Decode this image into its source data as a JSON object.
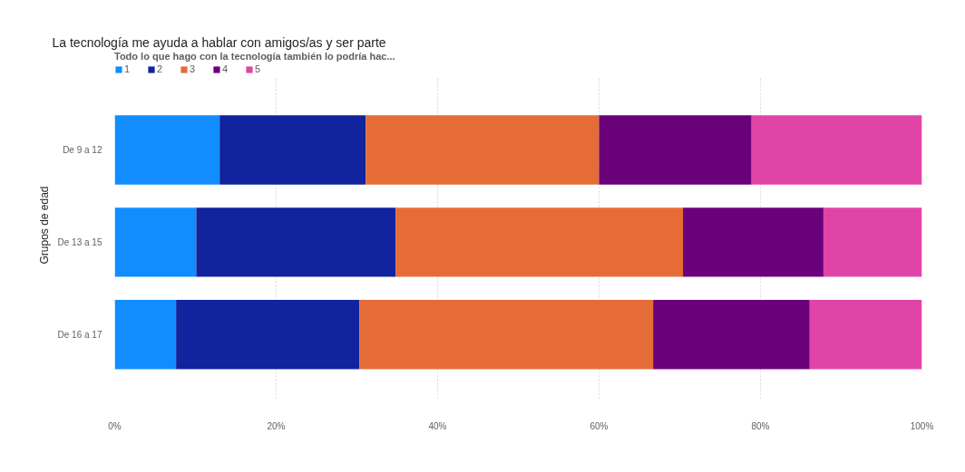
{
  "chart_data": {
    "type": "bar",
    "title": "La tecnología me ayuda a hablar con amigos/as y ser parte",
    "legend_title": "Todo lo que hago con la tecnología también lo podría hac...",
    "ylabel": "Grupos de edad",
    "categories": [
      "De 9 a 12",
      "De 13 a 15",
      "De 16 a 17"
    ],
    "orientation": "horizontal",
    "stacked": true,
    "series": [
      {
        "name": "1",
        "color": "#118dff",
        "values": [
          13.0,
          10.1,
          7.6
        ]
      },
      {
        "name": "2",
        "color": "#12239e",
        "values": [
          18.1,
          24.7,
          22.7
        ]
      },
      {
        "name": "3",
        "color": "#e66c37",
        "values": [
          28.9,
          35.6,
          36.4
        ]
      },
      {
        "name": "4",
        "color": "#6b007b",
        "values": [
          18.9,
          17.4,
          19.4
        ]
      },
      {
        "name": "5",
        "color": "#e044a7",
        "values": [
          21.1,
          12.2,
          13.9
        ]
      }
    ],
    "xlim": [
      0,
      100
    ],
    "xticks": [
      {
        "value": 0,
        "label": "0%"
      },
      {
        "value": 20,
        "label": "20%"
      },
      {
        "value": 40,
        "label": "40%"
      },
      {
        "value": 60,
        "label": "60%"
      },
      {
        "value": 80,
        "label": "80%"
      },
      {
        "value": 100,
        "label": "100%"
      }
    ],
    "grid": "x",
    "legend": "top left"
  }
}
